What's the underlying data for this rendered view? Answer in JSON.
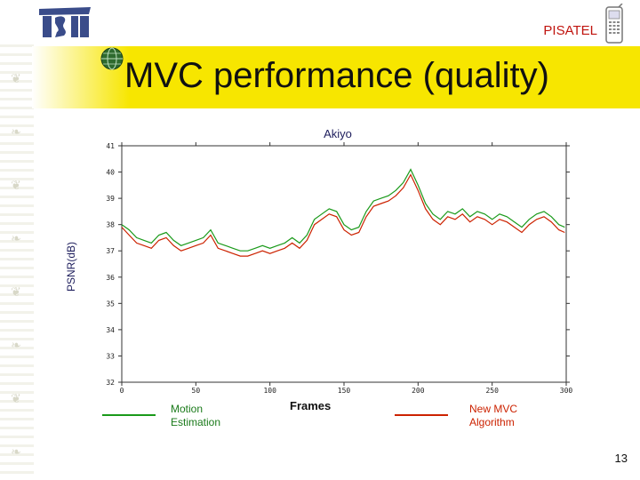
{
  "header": {
    "brand": "PISATEL",
    "title": "MVC performance (quality)"
  },
  "footer": {
    "page_number": "13"
  },
  "icons": {
    "logo": "tsit-logo-icon",
    "globe": "globe-icon",
    "phone": "mobile-phone-icon"
  },
  "colors": {
    "title_bar": "#f7e600",
    "motion_estimation": "#1a9a1a",
    "new_mvc": "#cc2200",
    "brand_red": "#c0140f"
  },
  "legend": {
    "motion_estimation": [
      "Motion",
      "Estimation"
    ],
    "new_mvc": [
      "New MVC",
      "Algorithm"
    ]
  },
  "chart_data": {
    "type": "line",
    "title": "Akiyo",
    "xlabel": "Frames",
    "ylabel": "PSNR(dB)",
    "xlim": [
      0,
      300
    ],
    "ylim": [
      32,
      41
    ],
    "x_ticks": [
      "0",
      "50",
      "100",
      "150",
      "200",
      "250",
      "300"
    ],
    "y_ticks": [
      "32",
      "33",
      "34",
      "35",
      "36",
      "37",
      "38",
      "39",
      "40",
      "41"
    ],
    "grid": false,
    "legend_position": "bottom",
    "series": [
      {
        "name": "Motion Estimation",
        "color": "#1a9a1a",
        "x": [
          0,
          5,
          10,
          15,
          20,
          25,
          30,
          35,
          40,
          45,
          50,
          55,
          60,
          65,
          70,
          75,
          80,
          85,
          90,
          95,
          100,
          105,
          110,
          115,
          120,
          125,
          130,
          135,
          140,
          145,
          150,
          155,
          160,
          165,
          170,
          175,
          180,
          185,
          190,
          195,
          200,
          205,
          210,
          215,
          220,
          225,
          230,
          235,
          240,
          245,
          250,
          255,
          260,
          265,
          270,
          275,
          280,
          285,
          290,
          295,
          299
        ],
        "values": [
          38.0,
          37.8,
          37.5,
          37.4,
          37.3,
          37.6,
          37.7,
          37.4,
          37.2,
          37.3,
          37.4,
          37.5,
          37.8,
          37.3,
          37.2,
          37.1,
          37.0,
          37.0,
          37.1,
          37.2,
          37.1,
          37.2,
          37.3,
          37.5,
          37.3,
          37.6,
          38.2,
          38.4,
          38.6,
          38.5,
          38.0,
          37.8,
          37.9,
          38.5,
          38.9,
          39.0,
          39.1,
          39.3,
          39.6,
          40.1,
          39.5,
          38.8,
          38.4,
          38.2,
          38.5,
          38.4,
          38.6,
          38.3,
          38.5,
          38.4,
          38.2,
          38.4,
          38.3,
          38.1,
          37.9,
          38.2,
          38.4,
          38.5,
          38.3,
          38.0,
          37.9
        ]
      },
      {
        "name": "New MVC Algorithm",
        "color": "#cc2200",
        "x": [
          0,
          5,
          10,
          15,
          20,
          25,
          30,
          35,
          40,
          45,
          50,
          55,
          60,
          65,
          70,
          75,
          80,
          85,
          90,
          95,
          100,
          105,
          110,
          115,
          120,
          125,
          130,
          135,
          140,
          145,
          150,
          155,
          160,
          165,
          170,
          175,
          180,
          185,
          190,
          195,
          200,
          205,
          210,
          215,
          220,
          225,
          230,
          235,
          240,
          245,
          250,
          255,
          260,
          265,
          270,
          275,
          280,
          285,
          290,
          295,
          299
        ],
        "values": [
          37.9,
          37.6,
          37.3,
          37.2,
          37.1,
          37.4,
          37.5,
          37.2,
          37.0,
          37.1,
          37.2,
          37.3,
          37.6,
          37.1,
          37.0,
          36.9,
          36.8,
          36.8,
          36.9,
          37.0,
          36.9,
          37.0,
          37.1,
          37.3,
          37.1,
          37.4,
          38.0,
          38.2,
          38.4,
          38.3,
          37.8,
          37.6,
          37.7,
          38.3,
          38.7,
          38.8,
          38.9,
          39.1,
          39.4,
          39.9,
          39.3,
          38.6,
          38.2,
          38.0,
          38.3,
          38.2,
          38.4,
          38.1,
          38.3,
          38.2,
          38.0,
          38.2,
          38.1,
          37.9,
          37.7,
          38.0,
          38.2,
          38.3,
          38.1,
          37.8,
          37.7
        ]
      }
    ]
  }
}
